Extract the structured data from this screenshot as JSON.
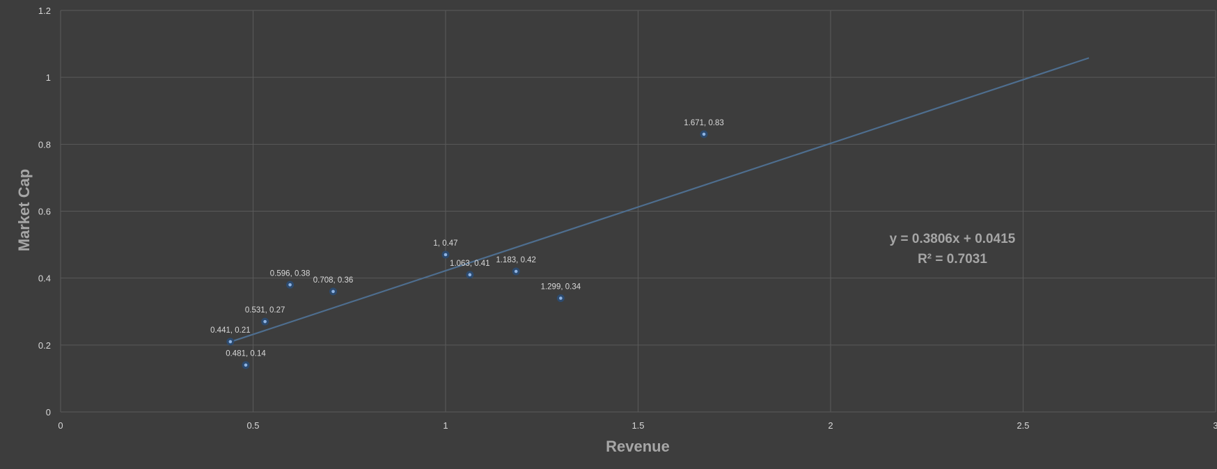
{
  "chart_data": {
    "type": "scatter",
    "title": "",
    "xlabel": "Revenue",
    "ylabel": "Market Cap",
    "xlim": [
      0,
      3
    ],
    "ylim": [
      0,
      1.2
    ],
    "x_ticks": [
      0,
      0.5,
      1,
      1.5,
      2,
      2.5,
      3
    ],
    "x_tick_labels": [
      "0",
      "0.5",
      "1",
      "1.5",
      "2",
      "2.5",
      "3"
    ],
    "y_ticks": [
      0,
      0.2,
      0.4,
      0.6,
      0.8,
      1,
      1.2
    ],
    "y_tick_labels": [
      "0",
      "0.2",
      "0.4",
      "0.6",
      "0.8",
      "1",
      "1.2"
    ],
    "grid": true,
    "legend": "none",
    "background_color": "#3d3d3d",
    "marker_color": "#8fb4e3",
    "trendline_color": "#4e6e8f",
    "points": [
      {
        "x": 0.441,
        "y": 0.21,
        "label": "0.441, 0.21"
      },
      {
        "x": 0.481,
        "y": 0.14,
        "label": "0.481, 0.14"
      },
      {
        "x": 0.531,
        "y": 0.27,
        "label": "0.531, 0.27"
      },
      {
        "x": 0.596,
        "y": 0.38,
        "label": "0.596, 0.38"
      },
      {
        "x": 0.708,
        "y": 0.36,
        "label": "0.708, 0.36"
      },
      {
        "x": 1,
        "y": 0.47,
        "label": "1, 0.47"
      },
      {
        "x": 1.063,
        "y": 0.41,
        "label": "1.063, 0.41"
      },
      {
        "x": 1.183,
        "y": 0.42,
        "label": "1.183, 0.42"
      },
      {
        "x": 1.299,
        "y": 0.34,
        "label": "1.299, 0.34"
      },
      {
        "x": 1.671,
        "y": 0.83,
        "label": "1.671, 0.83"
      }
    ],
    "trendline": {
      "type": "linear",
      "slope": 0.3806,
      "intercept": 0.0415,
      "x_start": 0.441,
      "x_end": 2.671,
      "equation": "y = 0.3806x + 0.0415",
      "r_squared": "R² = 0.7031"
    }
  }
}
